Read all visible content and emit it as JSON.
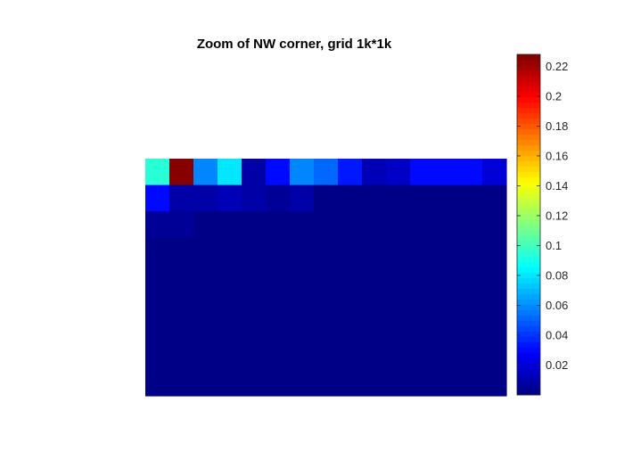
{
  "chart_data": {
    "type": "heatmap",
    "title": "Zoom of NW corner, grid 1k*1k",
    "xlabel": "",
    "ylabel": "",
    "colormap": "jet",
    "colorbar": {
      "location": "right",
      "range": [
        0.0,
        0.228
      ],
      "ticks": [
        0.02,
        0.04,
        0.06,
        0.08,
        0.1,
        0.12,
        0.14,
        0.16,
        0.18,
        0.2,
        0.22
      ],
      "tick_labels": [
        "0.02",
        "0.04",
        "0.06",
        "0.08",
        "0.1",
        "0.12",
        "0.14",
        "0.16",
        "0.18",
        "0.2",
        "0.22"
      ]
    },
    "axes_visible": false,
    "grid": false,
    "rows": 9,
    "cols": 15,
    "values": [
      [
        0.095,
        0.228,
        0.06,
        0.08,
        0.008,
        0.03,
        0.06,
        0.05,
        0.035,
        0.012,
        0.015,
        0.03,
        0.03,
        0.03,
        0.02
      ],
      [
        0.03,
        0.008,
        0.01,
        0.012,
        0.008,
        0.004,
        0.008,
        0.002,
        0.002,
        0.002,
        0.002,
        0.002,
        0.002,
        0.002,
        0.002
      ],
      [
        0.005,
        0.005,
        0.002,
        0.002,
        0.002,
        0.002,
        0.002,
        0.002,
        0.002,
        0.002,
        0.002,
        0.002,
        0.002,
        0.002,
        0.002
      ],
      [
        0.002,
        0.002,
        0.002,
        0.002,
        0.002,
        0.002,
        0.002,
        0.002,
        0.002,
        0.002,
        0.002,
        0.002,
        0.002,
        0.002,
        0.002
      ],
      [
        0.002,
        0.002,
        0.002,
        0.002,
        0.002,
        0.002,
        0.002,
        0.002,
        0.002,
        0.002,
        0.002,
        0.002,
        0.002,
        0.002,
        0.002
      ],
      [
        0.002,
        0.002,
        0.002,
        0.002,
        0.002,
        0.002,
        0.002,
        0.002,
        0.002,
        0.002,
        0.002,
        0.002,
        0.002,
        0.002,
        0.002
      ],
      [
        0.002,
        0.002,
        0.002,
        0.002,
        0.002,
        0.002,
        0.002,
        0.002,
        0.002,
        0.002,
        0.002,
        0.002,
        0.002,
        0.002,
        0.002
      ],
      [
        0.002,
        0.002,
        0.002,
        0.002,
        0.002,
        0.002,
        0.002,
        0.002,
        0.002,
        0.002,
        0.002,
        0.002,
        0.002,
        0.002,
        0.002
      ],
      [
        0.002,
        0.002,
        0.002,
        0.002,
        0.002,
        0.002,
        0.002,
        0.002,
        0.002,
        0.002,
        0.002,
        0.002,
        0.002,
        0.002,
        0.002
      ]
    ]
  }
}
